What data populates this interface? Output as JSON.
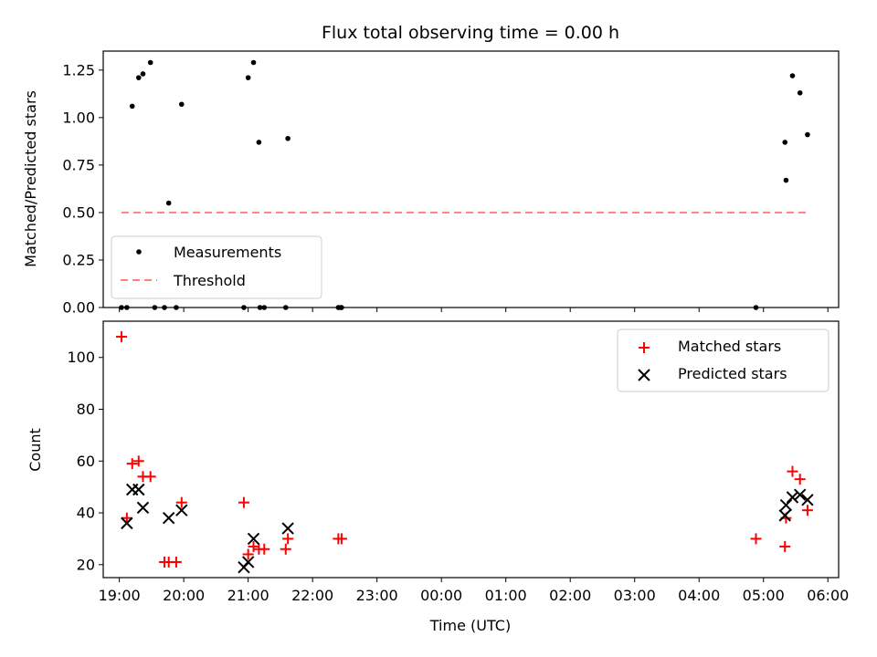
{
  "chart_data": [
    {
      "type": "scatter",
      "title": "Flux total observing time = 0.00 h",
      "xlabel": "",
      "ylabel": "Matched/Predicted stars",
      "ylim": [
        0,
        1.35
      ],
      "xlim": [
        "18:45",
        "06:10"
      ],
      "yticks": [
        "0.00",
        "0.25",
        "0.50",
        "0.75",
        "1.00",
        "1.25"
      ],
      "legend": {
        "position": "lower-left",
        "entries": [
          "Measurements",
          "Threshold"
        ]
      },
      "colors": {
        "measurements": "#000000",
        "threshold": "#ff7f7f"
      },
      "series": [
        {
          "name": "Measurements",
          "x": [
            "19:02",
            "19:07",
            "19:12",
            "19:18",
            "19:22",
            "19:29",
            "19:33",
            "19:42",
            "19:46",
            "19:53",
            "19:58",
            "20:56",
            "21:00",
            "21:05",
            "21:10",
            "21:11",
            "21:15",
            "21:35",
            "21:37",
            "22:24",
            "22:26",
            "22:27",
            "04:53",
            "05:20",
            "05:21",
            "05:27",
            "05:34",
            "05:41"
          ],
          "y": [
            0,
            0,
            1.06,
            1.21,
            1.23,
            1.29,
            0,
            0,
            0.55,
            0,
            1.07,
            0,
            1.21,
            1.29,
            0.87,
            0,
            0,
            0,
            0.89,
            0,
            0,
            0,
            0,
            0.87,
            0.67,
            1.22,
            1.13,
            0.91
          ]
        },
        {
          "name": "Threshold",
          "x": [
            "19:02",
            "05:41"
          ],
          "y": [
            0.5,
            0.5
          ]
        }
      ]
    },
    {
      "type": "scatter",
      "title": "",
      "xlabel": "Time (UTC)",
      "ylabel": "Count",
      "ylim": [
        15,
        114
      ],
      "xlim": [
        "18:45",
        "06:10"
      ],
      "yticks": [
        "20",
        "40",
        "60",
        "80",
        "100"
      ],
      "xticks": [
        "19:00",
        "20:00",
        "21:00",
        "22:00",
        "23:00",
        "00:00",
        "01:00",
        "02:00",
        "03:00",
        "04:00",
        "05:00",
        "06:00"
      ],
      "legend": {
        "position": "upper-right",
        "entries": [
          "Matched stars",
          "Predicted stars"
        ]
      },
      "colors": {
        "matched": "#ff0000",
        "predicted": "#000000"
      },
      "series": [
        {
          "name": "Matched stars",
          "x": [
            "19:02",
            "19:07",
            "19:12",
            "19:18",
            "19:22",
            "19:29",
            "19:42",
            "19:46",
            "19:53",
            "19:58",
            "20:56",
            "21:00",
            "21:05",
            "21:10",
            "21:15",
            "21:35",
            "21:37",
            "22:24",
            "22:27",
            "04:53",
            "05:20",
            "05:21",
            "05:27",
            "05:34",
            "05:41"
          ],
          "y": [
            108,
            38,
            59,
            60,
            54,
            54,
            21,
            21,
            21,
            44,
            44,
            24,
            27,
            26,
            26,
            26,
            30,
            30,
            30,
            30,
            27,
            38,
            56,
            53,
            41
          ]
        },
        {
          "name": "Predicted stars",
          "x": [
            "19:07",
            "19:12",
            "19:18",
            "19:22",
            "19:46",
            "19:58",
            "20:56",
            "21:00",
            "21:05",
            "21:37",
            "05:20",
            "05:21",
            "05:27",
            "05:34",
            "05:41"
          ],
          "y": [
            36,
            49,
            49,
            42,
            38,
            41,
            19,
            21,
            30,
            34,
            39,
            43,
            46,
            47,
            45
          ]
        }
      ]
    }
  ]
}
